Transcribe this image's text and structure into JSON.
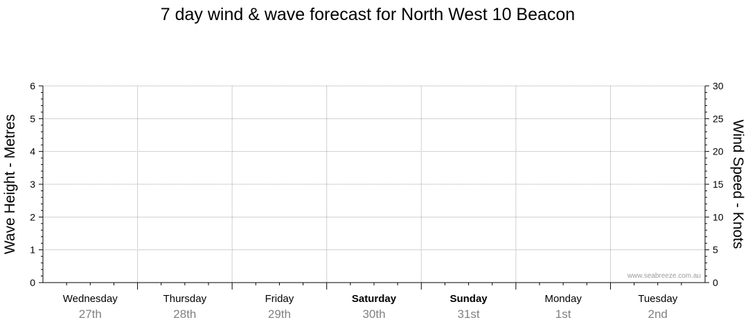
{
  "chart_data": {
    "type": "line",
    "title": "7 day wind & wave forecast for North West 10 Beacon",
    "y_left_label": "Wave Height - Metres",
    "y_right_label": "Wind Speed - Knots",
    "y_left_lim": [
      0,
      6
    ],
    "y_left_ticks": [
      "0",
      "1",
      "2",
      "3",
      "4",
      "5",
      "6"
    ],
    "y_right_lim": [
      0,
      30
    ],
    "y_right_ticks": [
      "0",
      "5",
      "10",
      "15",
      "20",
      "25",
      "30"
    ],
    "grid": true,
    "categories": [
      {
        "day": "Wednesday",
        "date": "27th",
        "bold": false
      },
      {
        "day": "Thursday",
        "date": "28th",
        "bold": false
      },
      {
        "day": "Friday",
        "date": "29th",
        "bold": false
      },
      {
        "day": "Saturday",
        "date": "30th",
        "bold": true
      },
      {
        "day": "Sunday",
        "date": "31st",
        "bold": true
      },
      {
        "day": "Monday",
        "date": "1st",
        "bold": false
      },
      {
        "day": "Tuesday",
        "date": "2nd",
        "bold": false
      }
    ],
    "series": []
  },
  "watermark": "www.seabreeze.com.au",
  "colors": {
    "grid": "#a0a0a0",
    "axis": "#000000",
    "date_text": "#808080"
  }
}
